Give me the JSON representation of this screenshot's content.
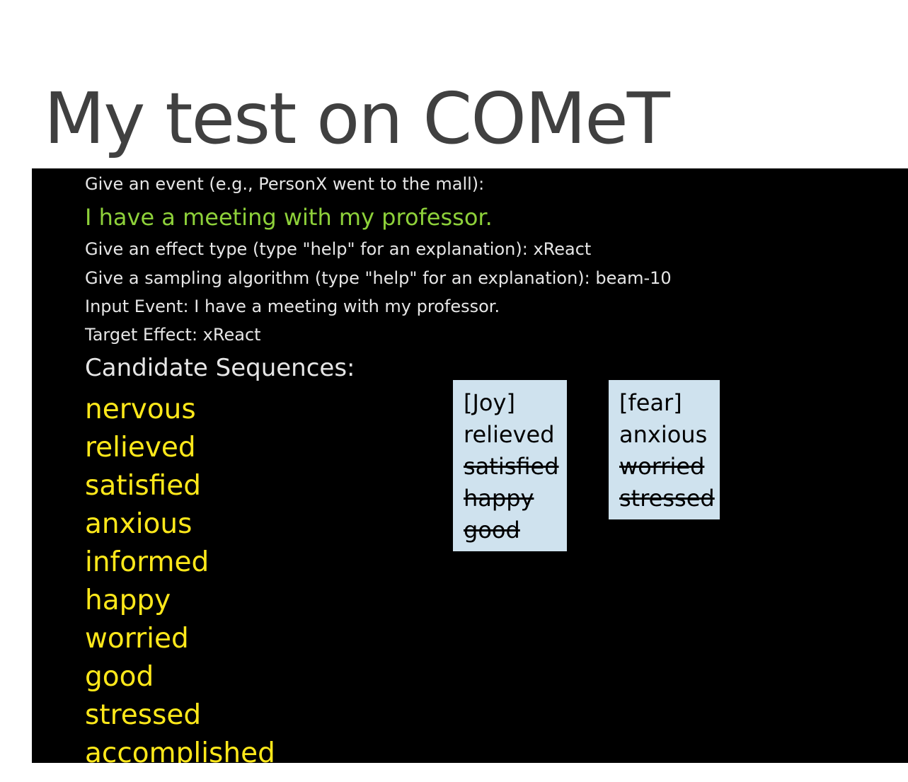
{
  "title": "My test on COMeT",
  "terminal": {
    "prompt_event": "Give an event (e.g., PersonX went to the mall):",
    "event_input": "I have a meeting with my professor.",
    "prompt_effect": "Give an effect type (type \"help\" for an explanation): xReact",
    "prompt_sampling": "Give a sampling algorithm (type \"help\" for an explanation): beam-10",
    "input_event_line": "Input Event:   I have a meeting with my professor.",
    "target_effect_line": "Target Effect: xReact",
    "candidates_header": "Candidate Sequences:",
    "candidates": [
      "nervous",
      "relieved",
      "satisfied",
      "anxious",
      "informed",
      "happy",
      "worried",
      "good",
      "stressed",
      "accomplished"
    ]
  },
  "annotations": {
    "joy": {
      "label": "[Joy]",
      "kept": "relieved",
      "struck": [
        "satisfied",
        "happy",
        "good"
      ]
    },
    "fear": {
      "label": "[fear]",
      "kept": "anxious",
      "struck": [
        "worried",
        "stressed"
      ]
    }
  },
  "colors": {
    "title": "#404040",
    "terminal_bg": "#000000",
    "prompt_text": "#e6e6e6",
    "event_text": "#8ed13a",
    "candidate_text": "#ffe81a",
    "annotation_bg": "#cfe2ee"
  }
}
